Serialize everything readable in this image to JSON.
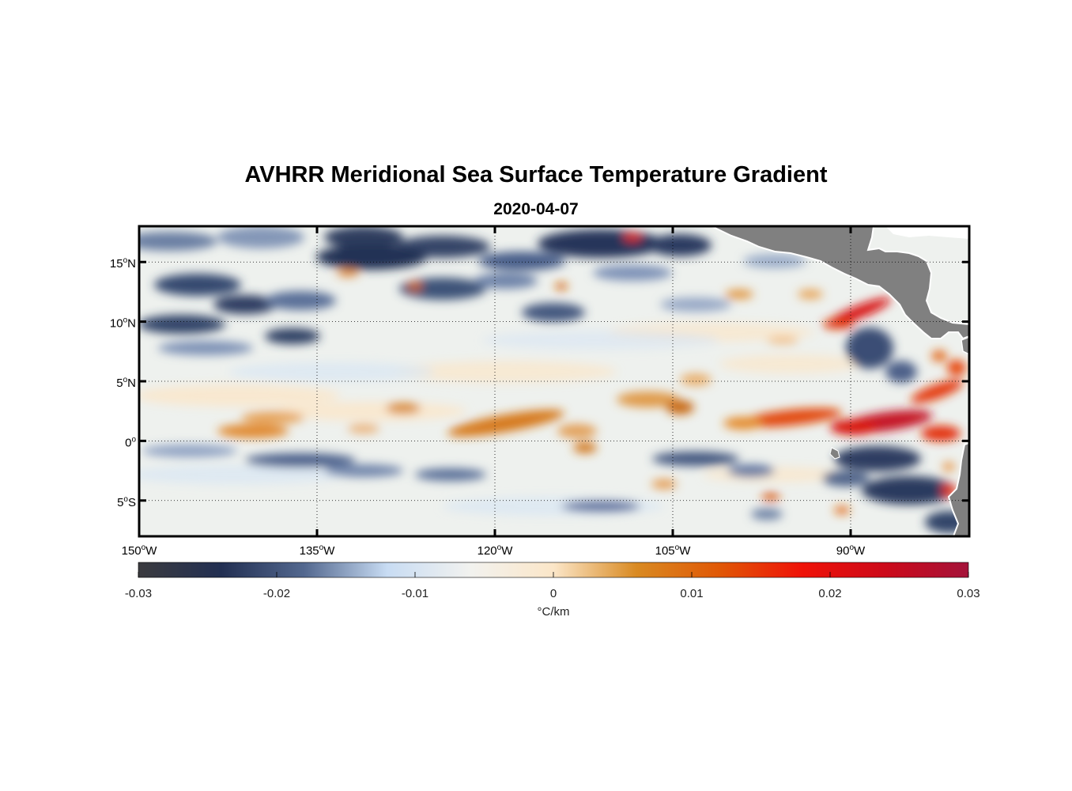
{
  "header": {
    "title": "AVHRR Meridional Sea Surface Temperature Gradient",
    "subtitle": "2020-04-07"
  },
  "map": {
    "lon_range": [
      -150,
      -80
    ],
    "lat_range": [
      -8,
      18
    ],
    "x_ticks": [
      {
        "lon": -150,
        "num": "150",
        "hemi": "W"
      },
      {
        "lon": -135,
        "num": "135",
        "hemi": "W"
      },
      {
        "lon": -120,
        "num": "120",
        "hemi": "W"
      },
      {
        "lon": -105,
        "num": "105",
        "hemi": "W"
      },
      {
        "lon": -90,
        "num": "90",
        "hemi": "W"
      }
    ],
    "y_ticks": [
      {
        "lat": 15,
        "num": "15",
        "hemi": "N"
      },
      {
        "lat": 10,
        "num": "10",
        "hemi": "N"
      },
      {
        "lat": 5,
        "num": "5",
        "hemi": "N"
      },
      {
        "lat": 0,
        "num": "0",
        "hemi": ""
      },
      {
        "lat": -5,
        "num": "5",
        "hemi": "S"
      }
    ],
    "grid": "dotted",
    "land_color": "#808080"
  },
  "colorbar": {
    "range": [
      -0.03,
      0.03
    ],
    "ticks": [
      {
        "value": -0.03,
        "label": "-0.03"
      },
      {
        "value": -0.02,
        "label": "-0.02"
      },
      {
        "value": -0.01,
        "label": "-0.01"
      },
      {
        "value": 0,
        "label": "0"
      },
      {
        "value": 0.01,
        "label": "0.01"
      },
      {
        "value": 0.02,
        "label": "0.02"
      },
      {
        "value": 0.03,
        "label": "0.03"
      }
    ],
    "unit_label": "°C/km",
    "colors": [
      "#3b3b3f",
      "#222f52",
      "#53688f",
      "#c8dcf3",
      "#f2f2ef",
      "#fbe6c8",
      "#d98a22",
      "#e05806",
      "#ef1208",
      "#cc0a1a",
      "#a4133a"
    ]
  }
}
